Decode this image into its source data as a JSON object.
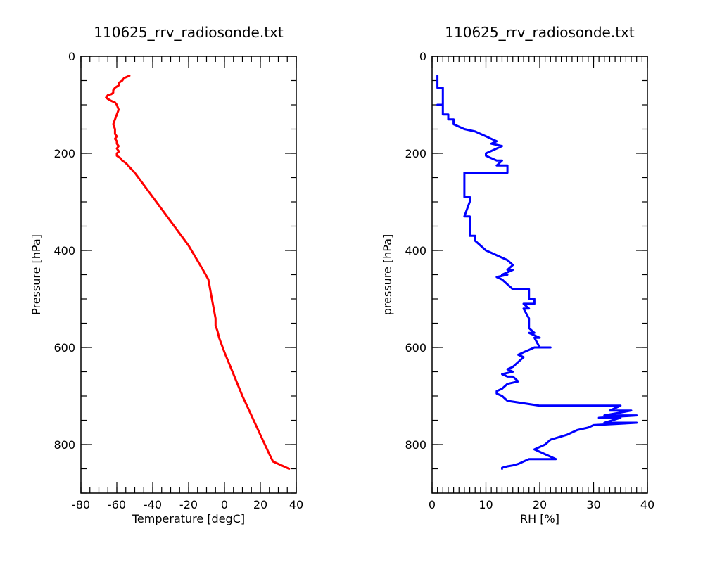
{
  "chart_data": [
    {
      "type": "line",
      "title": "110625_rrv_radiosonde.txt",
      "xlabel": "Temperature [degC]",
      "ylabel": "Pressure [hPa]",
      "xlim": [
        -80,
        40
      ],
      "ylim": [
        900,
        0
      ],
      "xticks": [
        -80,
        -60,
        -40,
        -20,
        0,
        20,
        40
      ],
      "yticks": [
        0,
        200,
        400,
        600,
        800
      ],
      "grid": false,
      "color": "#ff0000",
      "series": [
        {
          "x": [
            -53,
            -56,
            -57,
            -59,
            -59,
            -61,
            -62,
            -62,
            -63,
            -65,
            -66,
            -65,
            -63,
            -61,
            -60,
            -59,
            -60,
            -61,
            -62,
            -61,
            -61,
            -60,
            -61,
            -60,
            -60,
            -59,
            -60,
            -59,
            -59,
            -60,
            -60,
            -58,
            -57,
            -55,
            -50,
            -45,
            -40,
            -35,
            -30,
            -25,
            -20,
            -16,
            -12,
            -9,
            -8,
            -7,
            -6,
            -5,
            -5,
            -4,
            -3,
            -2,
            0,
            5,
            10,
            15,
            20,
            25,
            27,
            36
          ],
          "y": [
            40,
            45,
            50,
            55,
            60,
            65,
            70,
            75,
            78,
            80,
            85,
            88,
            92,
            95,
            100,
            110,
            120,
            130,
            140,
            150,
            160,
            165,
            170,
            175,
            180,
            185,
            190,
            195,
            197,
            200,
            205,
            210,
            215,
            220,
            240,
            265,
            290,
            315,
            340,
            365,
            390,
            415,
            440,
            460,
            480,
            500,
            520,
            540,
            555,
            565,
            580,
            590,
            610,
            655,
            700,
            740,
            780,
            820,
            835,
            850
          ]
        }
      ]
    },
    {
      "type": "line",
      "title": "110625_rrv_radiosonde.txt",
      "xlabel": "RH [%]",
      "ylabel": "pressure [hPa]",
      "xlim": [
        0,
        40
      ],
      "ylim": [
        900,
        0
      ],
      "xticks": [
        0,
        10,
        20,
        30,
        40
      ],
      "yticks": [
        0,
        200,
        400,
        600,
        800
      ],
      "grid": false,
      "color": "#0000ff",
      "series": [
        {
          "x": [
            1,
            1,
            2,
            2,
            1,
            2,
            2,
            3,
            3,
            4,
            4,
            5,
            6,
            8,
            9,
            10,
            11,
            12,
            11,
            13,
            12,
            11,
            10,
            10,
            11,
            12,
            13,
            12,
            14,
            14,
            12,
            13,
            12,
            12,
            10,
            8,
            6,
            6,
            7,
            7,
            6,
            7,
            7,
            8,
            8,
            9,
            10,
            11,
            12,
            13,
            14,
            15,
            14,
            15,
            13,
            14,
            12,
            13,
            14,
            15,
            16,
            17,
            18,
            18,
            19,
            19,
            17,
            18,
            17,
            18,
            18,
            19,
            18,
            20,
            19,
            20,
            22,
            19,
            18,
            17,
            16,
            17,
            16,
            15,
            14,
            15,
            13,
            14,
            15,
            16,
            14,
            13,
            12,
            12,
            13,
            14,
            20,
            35,
            33,
            37,
            32,
            38,
            31,
            35,
            32,
            38,
            30,
            29,
            27,
            25,
            22,
            21,
            19,
            23,
            18,
            17,
            16,
            15,
            14,
            13,
            13
          ],
          "y": [
            40,
            65,
            65,
            100,
            100,
            100,
            120,
            120,
            130,
            130,
            140,
            145,
            150,
            155,
            160,
            165,
            170,
            175,
            180,
            185,
            190,
            195,
            200,
            205,
            210,
            215,
            215,
            225,
            225,
            240,
            240,
            240,
            240,
            240,
            240,
            240,
            240,
            290,
            290,
            300,
            330,
            330,
            370,
            370,
            380,
            390,
            400,
            405,
            410,
            415,
            420,
            430,
            440,
            440,
            450,
            450,
            455,
            460,
            470,
            480,
            480,
            480,
            480,
            500,
            500,
            510,
            510,
            520,
            520,
            540,
            560,
            570,
            570,
            580,
            580,
            600,
            600,
            600,
            605,
            610,
            615,
            620,
            630,
            640,
            645,
            650,
            655,
            660,
            660,
            670,
            675,
            685,
            690,
            695,
            700,
            710,
            720,
            720,
            730,
            730,
            740,
            740,
            745,
            745,
            755,
            755,
            760,
            765,
            770,
            780,
            790,
            800,
            810,
            830,
            830,
            835,
            840,
            843,
            845,
            848,
            850
          ]
        }
      ]
    }
  ]
}
